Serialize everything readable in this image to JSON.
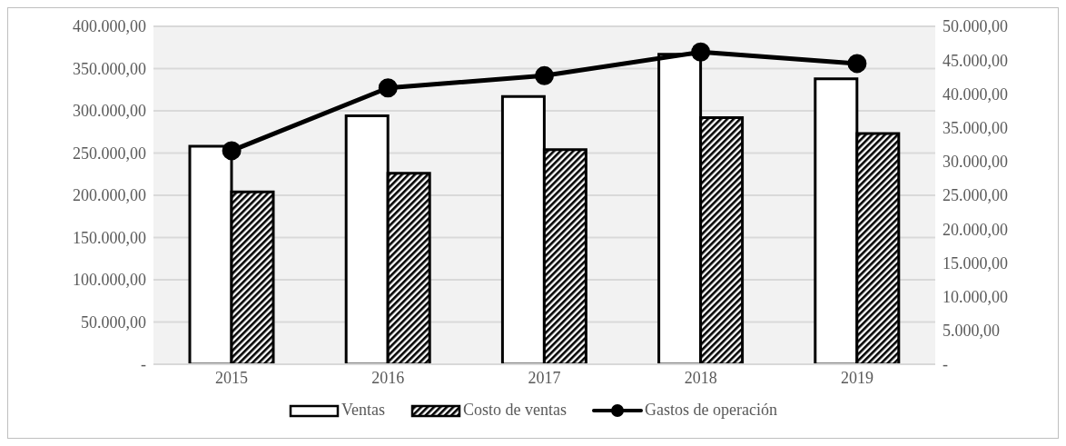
{
  "chart_data": {
    "type": "bar",
    "categories": [
      "2015",
      "2016",
      "2017",
      "2018",
      "2019"
    ],
    "series": [
      {
        "name": "Ventas",
        "color": "#ffffff",
        "values": [
          258000,
          294000,
          317000,
          367000,
          338000
        ]
      },
      {
        "name": "Costo de ventas",
        "color": "#000000",
        "values": [
          204000,
          226000,
          254000,
          292000,
          273000
        ]
      },
      {
        "name": "Gastos de operación",
        "type": "line",
        "axis": "y2",
        "color": "#000000",
        "values": [
          31600,
          40900,
          42700,
          46200,
          44500
        ]
      }
    ],
    "ylim": [
      0,
      400000
    ],
    "yticks": [
      {
        "value": 0,
        "label": "-"
      },
      {
        "value": 50000,
        "label": "50.000,00"
      },
      {
        "value": 100000,
        "label": "100.000,00"
      },
      {
        "value": 150000,
        "label": "150.000,00"
      },
      {
        "value": 200000,
        "label": "200.000,00"
      },
      {
        "value": 250000,
        "label": "250.000,00"
      },
      {
        "value": 300000,
        "label": "300.000,00"
      },
      {
        "value": 350000,
        "label": "350.000,00"
      },
      {
        "value": 400000,
        "label": "400.000,00"
      }
    ],
    "y2lim": [
      0,
      50000
    ],
    "y2ticks": [
      {
        "value": 0,
        "label": "-"
      },
      {
        "value": 5000,
        "label": "5.000,00"
      },
      {
        "value": 10000,
        "label": "10.000,00"
      },
      {
        "value": 15000,
        "label": "15.000,00"
      },
      {
        "value": 20000,
        "label": "20.000,00"
      },
      {
        "value": 25000,
        "label": "25.000,00"
      },
      {
        "value": 30000,
        "label": "30.000,00"
      },
      {
        "value": 35000,
        "label": "35.000,00"
      },
      {
        "value": 40000,
        "label": "40.000,00"
      },
      {
        "value": 45000,
        "label": "45.000,00"
      },
      {
        "value": 50000,
        "label": "50.000,00"
      }
    ],
    "grid": "y",
    "legend": "bottom",
    "marker": "circle",
    "line_style": "solid"
  }
}
